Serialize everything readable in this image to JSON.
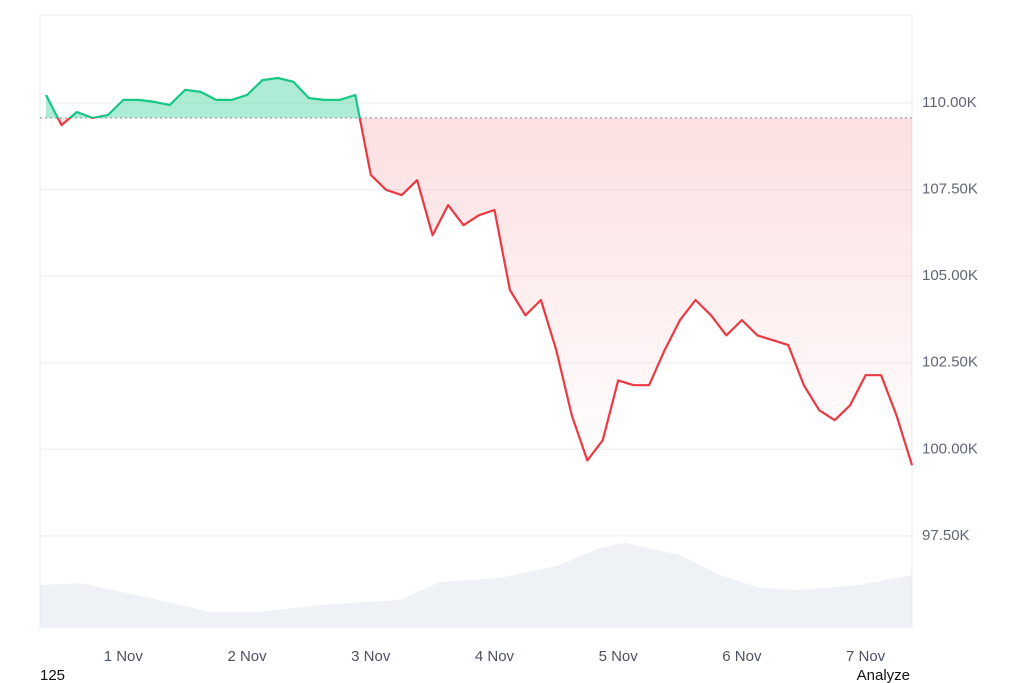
{
  "chart_data": {
    "type": "line",
    "categories": [
      null,
      null,
      null,
      null,
      null,
      "1 Nov",
      null,
      null,
      null,
      null,
      null,
      null,
      null,
      "2 Nov",
      null,
      null,
      null,
      null,
      null,
      null,
      null,
      "3 Nov",
      null,
      null,
      null,
      null,
      null,
      null,
      null,
      "4 Nov",
      null,
      null,
      null,
      null,
      null,
      null,
      null,
      "5 Nov",
      null,
      null,
      null,
      null,
      null,
      null,
      null,
      "6 Nov",
      null,
      null,
      null,
      null,
      null,
      null,
      null,
      "7 Nov",
      null,
      null,
      null
    ],
    "values": [
      110.23,
      109.36,
      109.74,
      109.57,
      109.65,
      110.09,
      110.09,
      110.03,
      109.94,
      110.38,
      110.32,
      110.09,
      110.09,
      110.23,
      110.66,
      110.72,
      110.61,
      110.14,
      110.09,
      110.09,
      110.23,
      107.92,
      107.49,
      107.34,
      107.77,
      106.18,
      107.05,
      106.47,
      106.76,
      106.91,
      104.6,
      103.87,
      104.31,
      102.86,
      100.98,
      99.68,
      100.26,
      101.99,
      101.85,
      101.85,
      102.86,
      103.73,
      104.31,
      103.87,
      103.29,
      103.73,
      103.29,
      103.15,
      103.01,
      101.85,
      101.13,
      100.84,
      101.27,
      102.14,
      102.14,
      100.98,
      99.54
    ],
    "baseline": 109.57,
    "color_above": "#16c784",
    "color_below": "#ea3943",
    "ylim": [
      94.84,
      112.54
    ],
    "yticks": [
      {
        "value": 97.5,
        "label": "97.50K"
      },
      {
        "value": 100,
        "label": "100.00K"
      },
      {
        "value": 102.5,
        "label": "102.50K"
      },
      {
        "value": 105,
        "label": "105.00K"
      },
      {
        "value": 107.5,
        "label": "107.50K"
      },
      {
        "value": 110,
        "label": "110.00K"
      }
    ],
    "grid": true
  },
  "footer": {
    "left": "125",
    "right": "Analyze"
  }
}
